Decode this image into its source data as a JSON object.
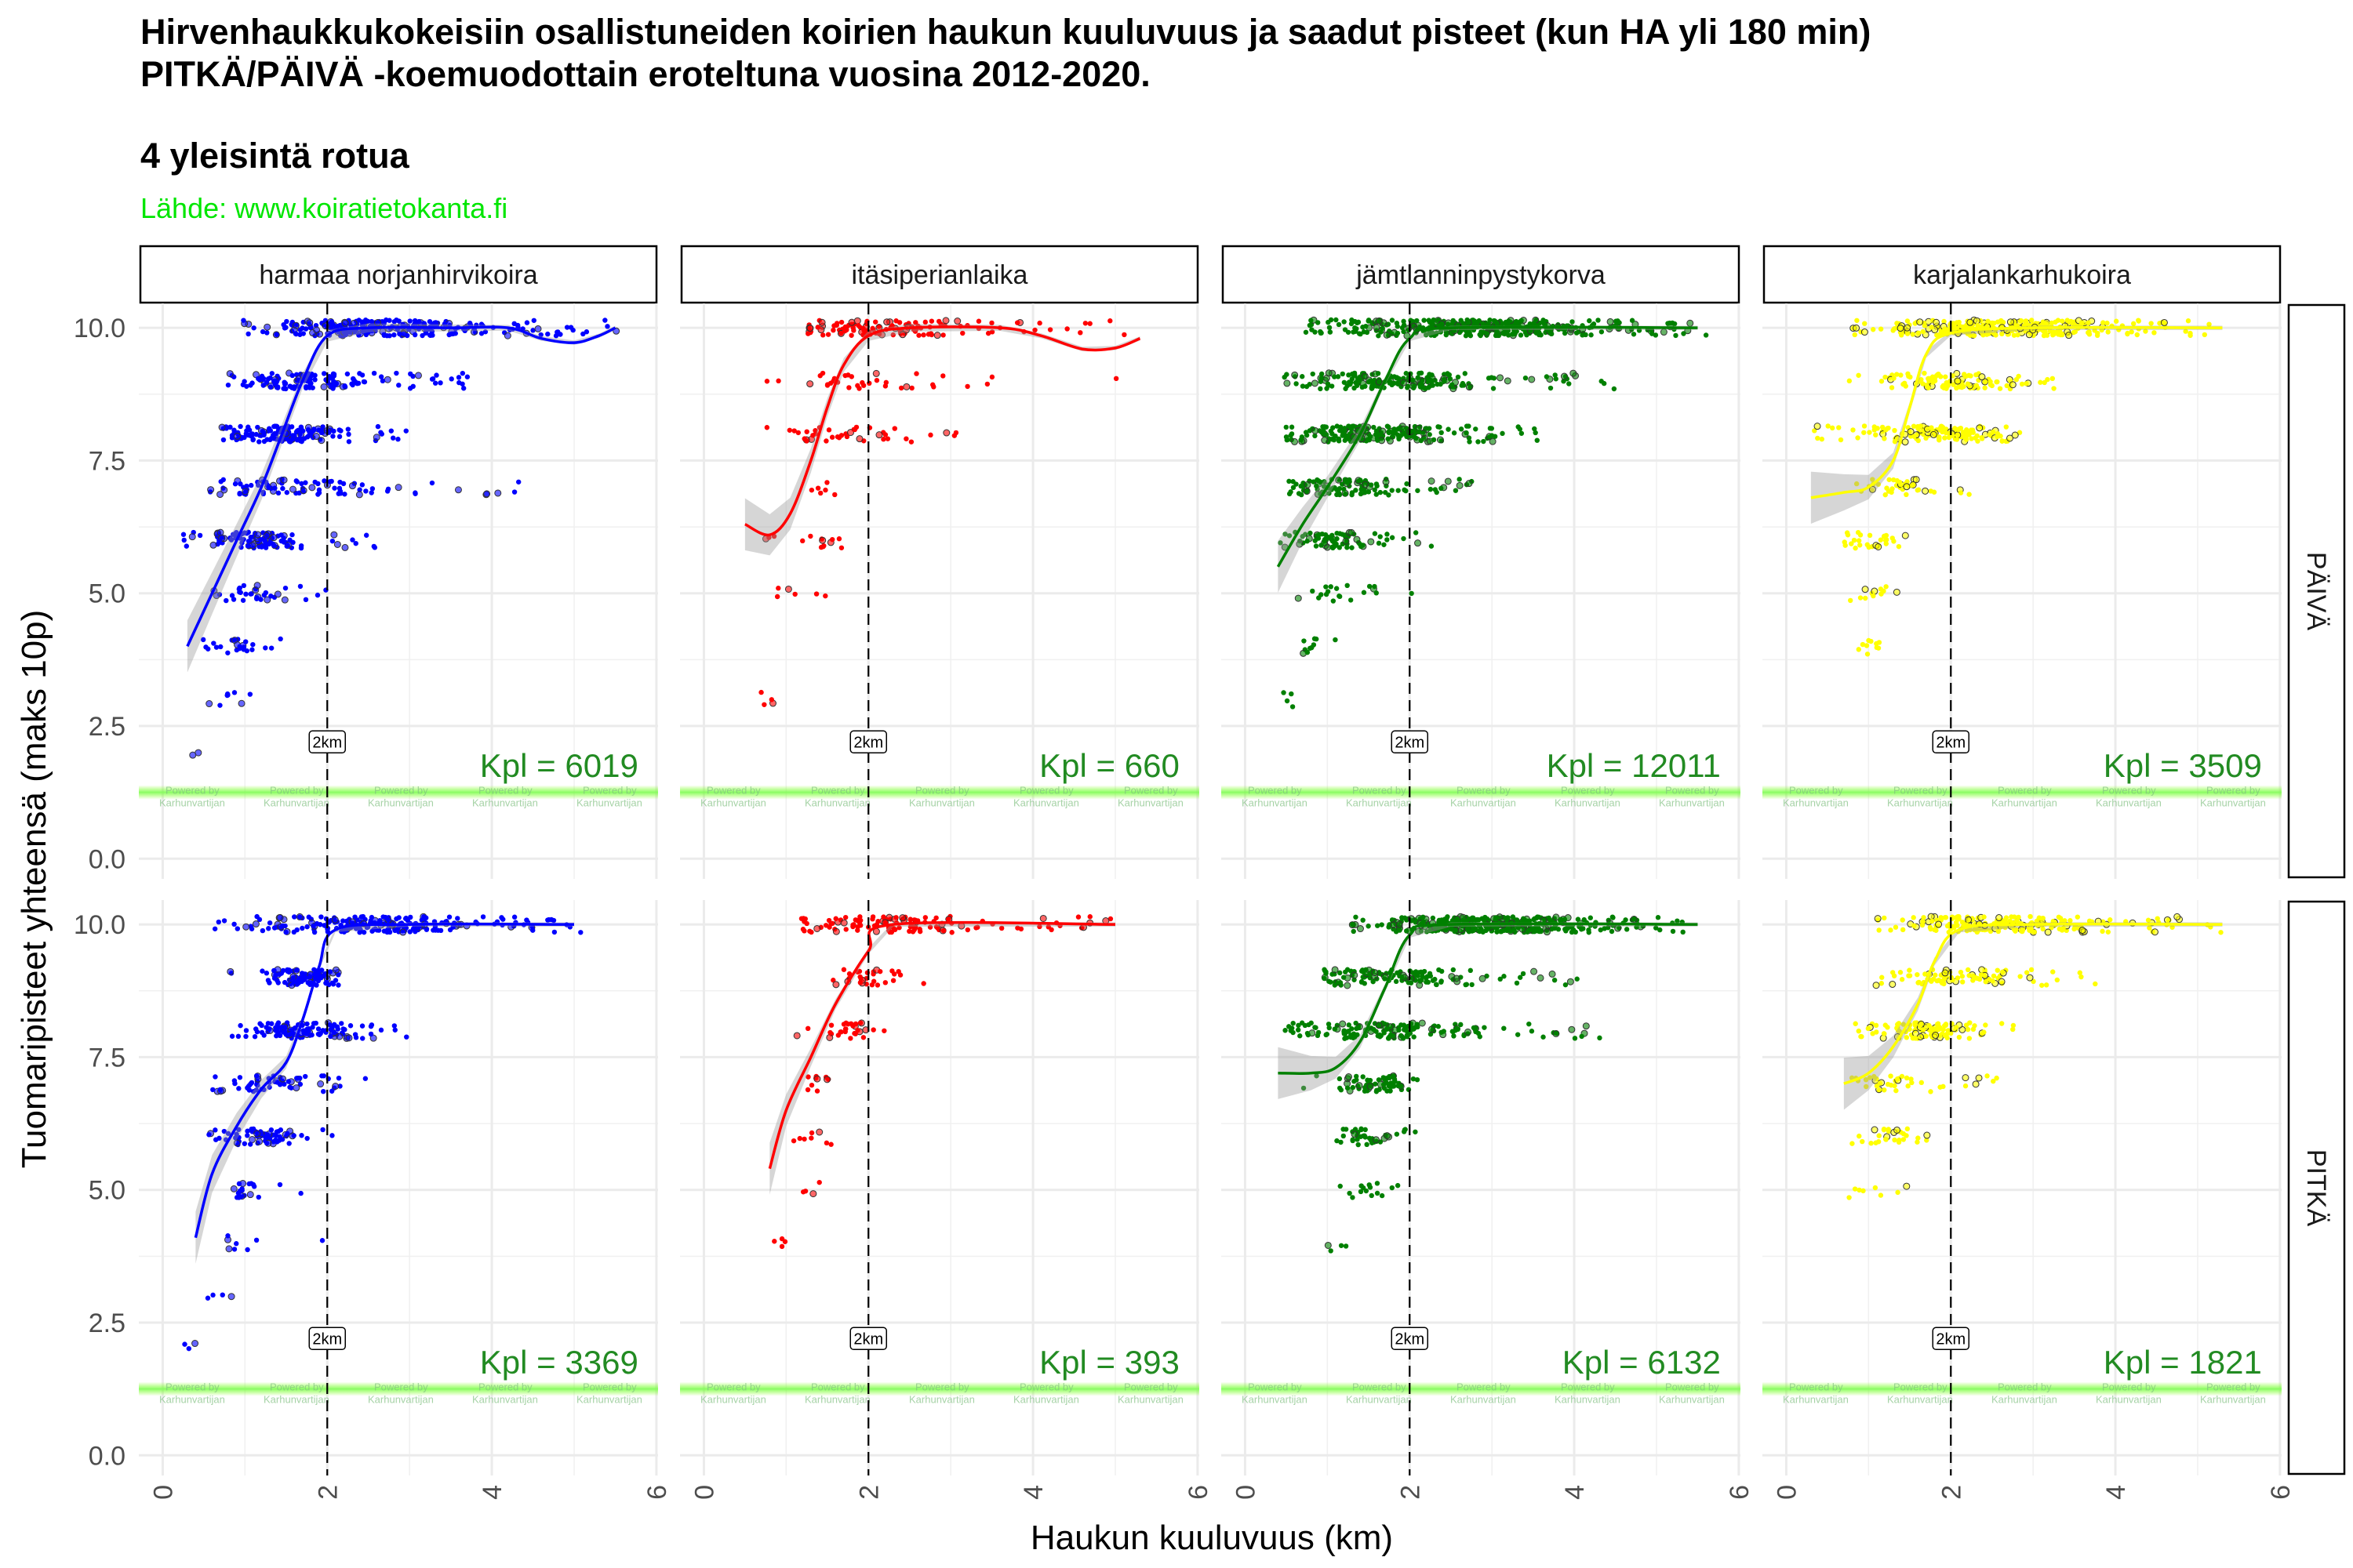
{
  "title_line1": "Hirvenhaukkukokeisiin osallistuneiden koirien haukun kuuluvuus ja saadut pisteet (kun HA yli 180 min)",
  "title_line2": "PITKÄ/PÄIVÄ -koemuodottain eroteltuna vuosina 2012-2020.",
  "subtitle": "4 yleisintä rotua",
  "source": "Lähde: www.koiratietokanta.fi",
  "watermark": [
    "Powered by",
    "Karhunvartijan"
  ],
  "chart_data": {
    "type": "scatter",
    "xlabel": "Haukun kuuluvuus (km)",
    "ylabel": "Tuomaripisteet yhteensä (maks 10p)",
    "xlim": [
      -0.29,
      6.02
    ],
    "ylim": [
      -0.38,
      10.46
    ],
    "x_ticks": [
      "0",
      "2",
      "4",
      "6"
    ],
    "x_tick_values": [
      0,
      2,
      4,
      6
    ],
    "y_ticks": [
      "0.0",
      "2.5",
      "5.0",
      "7.5",
      "10.0"
    ],
    "y_tick_values": [
      0,
      2.5,
      5,
      7.5,
      10
    ],
    "grid": true,
    "reference_line": {
      "x": 2,
      "label": "2km",
      "style": "dashed"
    },
    "columns": [
      "harmaa norjanhirvikoira",
      "itäsiperianlaika",
      "jämtlanninpystykorva",
      "karjalankarhukoira"
    ],
    "rows": [
      "PÄIVÄ",
      "PITKÄ"
    ],
    "colors": {
      "harmaa norjanhirvikoira": "#0000ff",
      "itäsiperianlaika": "#ff0000",
      "jämtlanninpystykorva": "#008000",
      "karjalankarhukoira": "#ffff00"
    },
    "count_color": "#228b22",
    "panels": [
      {
        "row": 0,
        "col": 0,
        "count_label": "Kpl = 6019",
        "clusters_note": "[score, x_min, x_mode, x_max, shown_points]",
        "clusters": [
          [
            10,
            1.0,
            2.5,
            5.5,
            260
          ],
          [
            9,
            0.8,
            1.7,
            3.7,
            140
          ],
          [
            8,
            0.7,
            1.5,
            3.0,
            160
          ],
          [
            7,
            0.6,
            1.5,
            4.7,
            90
          ],
          [
            6,
            0.2,
            1.1,
            2.6,
            110
          ],
          [
            5,
            0.4,
            1.1,
            2.0,
            35
          ],
          [
            4,
            0.3,
            0.9,
            1.5,
            25
          ],
          [
            3,
            0.6,
            0.8,
            1.4,
            8
          ],
          [
            2,
            0.4,
            0.4,
            0.6,
            2
          ]
        ],
        "smooth": [
          [
            0.3,
            4.0
          ],
          [
            0.6,
            5.0
          ],
          [
            0.9,
            6.0
          ],
          [
            1.2,
            7.0
          ],
          [
            1.45,
            8.0
          ],
          [
            1.7,
            9.0
          ],
          [
            2.0,
            9.85
          ],
          [
            2.5,
            10
          ],
          [
            3.5,
            10
          ],
          [
            4.2,
            10
          ],
          [
            4.6,
            9.8
          ],
          [
            5.0,
            9.72
          ],
          [
            5.3,
            9.85
          ],
          [
            5.5,
            10.0
          ]
        ]
      },
      {
        "row": 0,
        "col": 1,
        "count_label": "Kpl = 660",
        "clusters": [
          [
            10,
            1.3,
            2.2,
            5.3,
            120
          ],
          [
            9,
            0.8,
            2.0,
            5.1,
            35
          ],
          [
            8,
            0.4,
            1.6,
            3.7,
            40
          ],
          [
            7,
            1.0,
            1.4,
            1.6,
            6
          ],
          [
            6,
            0.5,
            1.4,
            1.7,
            14
          ],
          [
            5,
            0.6,
            0.9,
            1.6,
            6
          ],
          [
            3,
            0.7,
            0.8,
            0.9,
            4
          ]
        ],
        "smooth": [
          [
            0.5,
            6.3
          ],
          [
            0.8,
            6.1
          ],
          [
            1.05,
            6.5
          ],
          [
            1.3,
            7.5
          ],
          [
            1.5,
            8.5
          ],
          [
            1.7,
            9.3
          ],
          [
            2.0,
            9.85
          ],
          [
            2.5,
            10
          ],
          [
            3.6,
            10
          ],
          [
            4.1,
            9.85
          ],
          [
            4.6,
            9.6
          ],
          [
            5.0,
            9.62
          ],
          [
            5.3,
            9.8
          ]
        ]
      },
      {
        "row": 0,
        "col": 2,
        "count_label": "Kpl = 12011",
        "clusters": [
          [
            10,
            0.7,
            2.8,
            5.6,
            400
          ],
          [
            9,
            0.5,
            1.8,
            4.5,
            200
          ],
          [
            8,
            0.5,
            1.5,
            3.6,
            220
          ],
          [
            7,
            0.5,
            1.3,
            2.8,
            110
          ],
          [
            6,
            0.3,
            1.1,
            2.3,
            80
          ],
          [
            5,
            0.6,
            1.1,
            2.3,
            20
          ],
          [
            4,
            0.5,
            0.9,
            1.4,
            10
          ],
          [
            3,
            0.4,
            0.6,
            0.8,
            4
          ]
        ],
        "smooth": [
          [
            0.4,
            5.5
          ],
          [
            0.7,
            6.3
          ],
          [
            1.0,
            7.0
          ],
          [
            1.4,
            8.0
          ],
          [
            1.7,
            9.0
          ],
          [
            2.0,
            9.8
          ],
          [
            2.5,
            10
          ],
          [
            5.5,
            10
          ]
        ]
      },
      {
        "row": 0,
        "col": 3,
        "count_label": "Kpl = 3509",
        "clusters": [
          [
            10,
            0.7,
            2.7,
            5.3,
            300
          ],
          [
            9,
            0.7,
            2.0,
            3.3,
            110
          ],
          [
            8,
            0.3,
            1.9,
            3.0,
            140
          ],
          [
            7,
            0.7,
            1.4,
            2.2,
            40
          ],
          [
            6,
            0.7,
            1.1,
            1.5,
            30
          ],
          [
            5,
            0.6,
            1.0,
            1.4,
            12
          ],
          [
            4,
            0.6,
            1.0,
            1.4,
            10
          ]
        ],
        "smooth": [
          [
            0.3,
            6.8
          ],
          [
            0.7,
            6.9
          ],
          [
            1.0,
            7.0
          ],
          [
            1.3,
            7.5
          ],
          [
            1.5,
            8.5
          ],
          [
            1.7,
            9.5
          ],
          [
            2.0,
            9.9
          ],
          [
            3.0,
            10
          ],
          [
            5.3,
            10
          ]
        ]
      },
      {
        "row": 1,
        "col": 0,
        "count_label": "Kpl = 3369",
        "clusters": [
          [
            10,
            0.6,
            2.5,
            5.1,
            220
          ],
          [
            9,
            0.8,
            1.7,
            2.3,
            110
          ],
          [
            8,
            0.7,
            1.7,
            3.0,
            120
          ],
          [
            7,
            0.6,
            1.2,
            2.5,
            60
          ],
          [
            6,
            0.4,
            1.2,
            2.1,
            70
          ],
          [
            5,
            0.9,
            1.0,
            2.2,
            20
          ],
          [
            4,
            0.8,
            1.0,
            2.0,
            8
          ],
          [
            3,
            0.4,
            0.6,
            0.9,
            4
          ],
          [
            2,
            0.3,
            0.3,
            0.4,
            3
          ]
        ],
        "smooth": [
          [
            0.4,
            4.1
          ],
          [
            0.6,
            5.3
          ],
          [
            0.9,
            6.2
          ],
          [
            1.2,
            6.9
          ],
          [
            1.5,
            7.4
          ],
          [
            1.7,
            8.2
          ],
          [
            1.9,
            9.2
          ],
          [
            2.1,
            9.9
          ],
          [
            3.0,
            10
          ],
          [
            5.0,
            10
          ]
        ]
      },
      {
        "row": 1,
        "col": 1,
        "count_label": "Kpl = 393",
        "clusters": [
          [
            10,
            1.2,
            2.3,
            5.0,
            120
          ],
          [
            9,
            1.5,
            2.0,
            2.7,
            30
          ],
          [
            8,
            1.1,
            1.8,
            2.4,
            30
          ],
          [
            7,
            1.2,
            1.4,
            1.6,
            10
          ],
          [
            6,
            1.1,
            1.3,
            1.6,
            8
          ],
          [
            5,
            1.1,
            1.2,
            2.3,
            4
          ],
          [
            4,
            0.8,
            0.9,
            1.2,
            4
          ]
        ],
        "smooth": [
          [
            0.8,
            5.4
          ],
          [
            1.0,
            6.5
          ],
          [
            1.3,
            7.5
          ],
          [
            1.6,
            8.5
          ],
          [
            2.0,
            9.5
          ],
          [
            2.3,
            10
          ],
          [
            5.0,
            10
          ]
        ]
      },
      {
        "row": 1,
        "col": 2,
        "count_label": "Kpl = 6132",
        "clusters": [
          [
            10,
            1.2,
            3.0,
            5.4,
            380
          ],
          [
            9,
            1.0,
            1.8,
            4.3,
            130
          ],
          [
            8,
            0.5,
            1.7,
            4.3,
            160
          ],
          [
            7,
            0.7,
            1.6,
            2.2,
            70
          ],
          [
            6,
            0.9,
            1.4,
            2.2,
            40
          ],
          [
            5,
            1.1,
            1.5,
            1.9,
            15
          ],
          [
            4,
            1.0,
            1.2,
            1.4,
            4
          ]
        ],
        "smooth": [
          [
            0.4,
            7.2
          ],
          [
            0.8,
            7.2
          ],
          [
            1.1,
            7.3
          ],
          [
            1.4,
            7.8
          ],
          [
            1.7,
            8.8
          ],
          [
            2.0,
            9.8
          ],
          [
            2.5,
            10
          ],
          [
            5.5,
            10
          ]
        ]
      },
      {
        "row": 1,
        "col": 3,
        "count_label": "Kpl = 1821",
        "clusters": [
          [
            10,
            1.0,
            2.6,
            5.3,
            220
          ],
          [
            9,
            1.0,
            2.0,
            3.8,
            90
          ],
          [
            8,
            0.8,
            1.7,
            2.8,
            110
          ],
          [
            7,
            0.8,
            1.4,
            2.6,
            40
          ],
          [
            6,
            0.8,
            1.3,
            1.8,
            30
          ],
          [
            5,
            0.8,
            1.0,
            1.5,
            8
          ]
        ],
        "smooth": [
          [
            0.7,
            7.0
          ],
          [
            1.0,
            7.2
          ],
          [
            1.3,
            7.7
          ],
          [
            1.6,
            8.5
          ],
          [
            1.8,
            9.3
          ],
          [
            2.1,
            9.9
          ],
          [
            3.0,
            10
          ],
          [
            5.3,
            10
          ]
        ]
      }
    ]
  }
}
